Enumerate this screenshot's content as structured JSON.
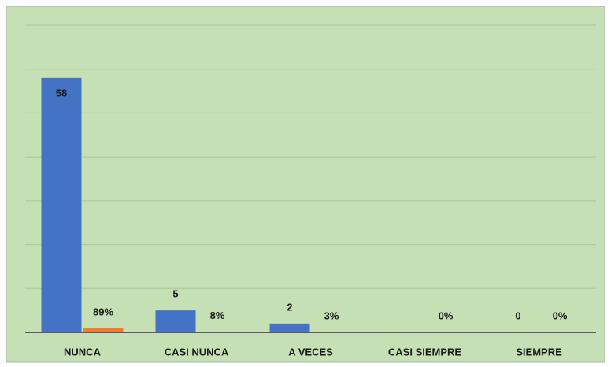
{
  "chart_data": {
    "type": "bar",
    "categories": [
      "NUNCA",
      "CASI NUNCA",
      "A VECES",
      "CASI SIEMPRE",
      "SIEMPRE"
    ],
    "series": [
      {
        "color": "#4472c4",
        "values": [
          58,
          5,
          2,
          null,
          0
        ]
      },
      {
        "color": "#ed7d31",
        "values": [
          0.89,
          0.08,
          0.03,
          0,
          0
        ],
        "value_labels": [
          "89%",
          "8%",
          "3%",
          "0%",
          "0%"
        ]
      }
    ],
    "ylim": [
      0,
      70
    ],
    "yticks": [
      0,
      10,
      20,
      30,
      40,
      50,
      60,
      70
    ],
    "grid": true
  }
}
